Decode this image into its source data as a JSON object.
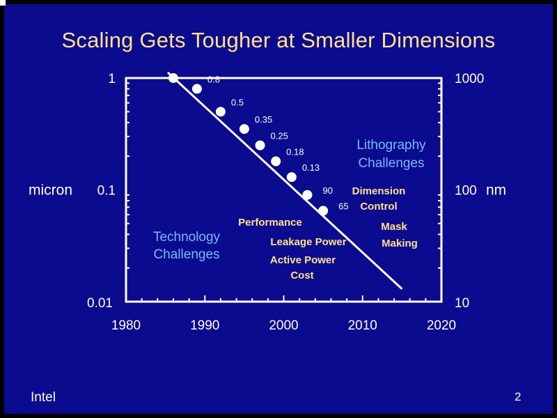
{
  "slide": {
    "title": "Scaling Gets Tougher at Smaller Dimensions",
    "brand": "Intel",
    "page_number": "2"
  },
  "colors": {
    "background": "#0b0b8f",
    "title": "#ffe28a",
    "plot_frame": "#ffffff",
    "bold_labels": "#ffe28a",
    "blue_labels": "#7db8ff"
  },
  "chart_data": {
    "type": "line",
    "scale": "log",
    "xlim": [
      1980,
      2020
    ],
    "ylim": [
      0.01,
      1
    ],
    "x_ticks": [
      "1980",
      "1990",
      "2000",
      "2010",
      "2020"
    ],
    "y_ticks_left": [
      "1",
      "0.1",
      "0.01"
    ],
    "y_ticks_right": [
      "1000",
      "100",
      "10"
    ],
    "ylabel_left": "micron",
    "ylabel_right": "nm",
    "series": [
      {
        "type": "scatter-line",
        "points": [
          {
            "x": 1986,
            "y": 1.0,
            "label": ""
          },
          {
            "x": 1989,
            "y": 0.8,
            "label": "0.8"
          },
          {
            "x": 1992,
            "y": 0.5,
            "label": "0.5"
          },
          {
            "x": 1995,
            "y": 0.35,
            "label": "0.35"
          },
          {
            "x": 1997,
            "y": 0.25,
            "label": "0.25"
          },
          {
            "x": 1999,
            "y": 0.18,
            "label": "0.18"
          },
          {
            "x": 2001,
            "y": 0.13,
            "label": "0.13"
          },
          {
            "x": 2003,
            "y": 0.09,
            "label": "90"
          },
          {
            "x": 2005,
            "y": 0.065,
            "label": "65"
          }
        ],
        "trend_end": {
          "x": 2015,
          "y": 0.013
        }
      }
    ],
    "annotations": {
      "lithography": [
        "Lithography",
        "Challenges"
      ],
      "technology": [
        "Technology",
        "Challenges"
      ],
      "dimension_control": [
        "Dimension",
        "Control"
      ],
      "mask_making": [
        "Mask",
        "Making"
      ],
      "performance": "Performance",
      "leakage_power": "Leakage Power",
      "active_power": "Active Power",
      "cost": "Cost"
    }
  }
}
